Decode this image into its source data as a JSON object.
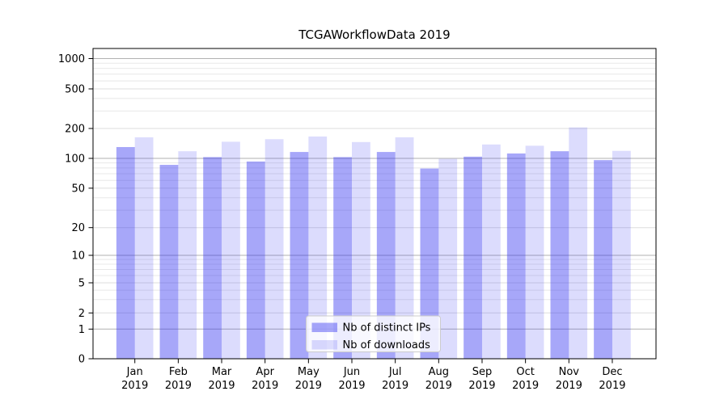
{
  "title": "TCGAWorkflowData 2019",
  "chart_data": {
    "type": "bar",
    "title": "TCGAWorkflowData 2019",
    "categories": [
      "Jan 2019",
      "Feb 2019",
      "Mar 2019",
      "Apr 2019",
      "May 2019",
      "Jun 2019",
      "Jul 2019",
      "Aug 2019",
      "Sep 2019",
      "Oct 2019",
      "Nov 2019",
      "Dec 2019"
    ],
    "category_month": [
      "Jan",
      "Feb",
      "Mar",
      "Apr",
      "May",
      "Jun",
      "Jul",
      "Aug",
      "Sep",
      "Oct",
      "Nov",
      "Dec"
    ],
    "category_year": "2019",
    "series": [
      {
        "name": "Nb of distinct IPs",
        "color": "#a8a8f8",
        "values": [
          130,
          86,
          103,
          93,
          116,
          103,
          116,
          79,
          104,
          112,
          118,
          96
        ]
      },
      {
        "name": "Nb of downloads",
        "color": "#dbdbfa",
        "values": [
          163,
          118,
          147,
          156,
          166,
          146,
          163,
          99,
          138,
          134,
          205,
          119
        ]
      }
    ],
    "xlabel": "",
    "ylabel": "",
    "yscale": "symlog",
    "y_ticks": [
      0,
      1,
      2,
      5,
      10,
      20,
      50,
      100,
      200,
      500,
      1000
    ],
    "ylim": [
      0,
      1300
    ],
    "grid": true,
    "legend": {
      "position": "lower center",
      "items": [
        "Nb of distinct IPs",
        "Nb of downloads"
      ]
    }
  },
  "colors": {
    "bar_dark": "#a8a8f8",
    "bar_light": "#dbdbfa",
    "grid_major": "#b2b2b2",
    "grid_minor": "#e8e8e8",
    "spine": "#000000",
    "legend_border": "#cccccc"
  }
}
